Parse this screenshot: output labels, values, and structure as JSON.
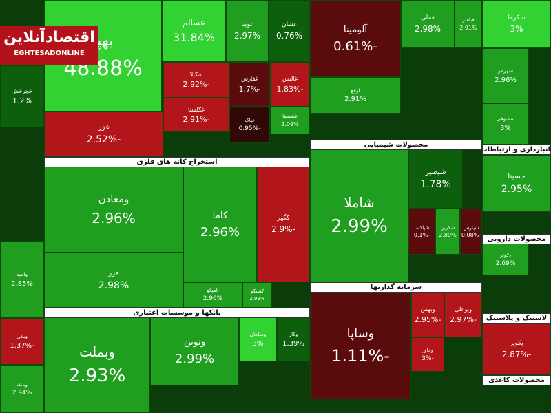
{
  "logo": {
    "title": "اقتصادآنلاین",
    "subtitle": "EGHTESADONLINE"
  },
  "tiles": [
    {
      "name": "بهپا",
      "change": "48.88%"
    },
    {
      "name": "عسالم",
      "change": "31.84%"
    },
    {
      "name": "غویتا",
      "change": "2.97%"
    },
    {
      "name": "غشان",
      "change": "0.76%"
    },
    {
      "name": "غزر",
      "change": "-2.52%"
    },
    {
      "name": "شگیلا",
      "change": "-2.92%"
    },
    {
      "name": "غگلستا",
      "change": "-2.91%"
    },
    {
      "name": "غفارس",
      "change": "-1.7%"
    },
    {
      "name": "غالبس",
      "change": "-1.83%"
    },
    {
      "name": "غپاک",
      "change": "-0.95%"
    },
    {
      "name": "غشصفا",
      "change": "2.09%"
    },
    {
      "name": "ومعادن",
      "change": "2.96%"
    },
    {
      "name": "فزر",
      "change": "2.98%"
    },
    {
      "name": "کاما",
      "change": "2.96%"
    },
    {
      "name": "کگهر",
      "change": "-2.9%"
    },
    {
      "name": "تامپکو",
      "change": "2.96%"
    },
    {
      "name": "کسنکو",
      "change": "2.99%"
    },
    {
      "name": "وبملت",
      "change": "2.93%"
    },
    {
      "name": "ونوین",
      "change": "2.99%"
    },
    {
      "name": "وسامان",
      "change": "3%"
    },
    {
      "name": "وکار",
      "change": "1.39%"
    },
    {
      "name": "آلومینا",
      "change": "-0.61%"
    },
    {
      "name": "فملی",
      "change": "2.98%"
    },
    {
      "name": "فباهنر",
      "change": "2.91%"
    },
    {
      "name": "سکرما",
      "change": "3%"
    },
    {
      "name": "ارفع",
      "change": "2.91%"
    },
    {
      "name": "شاملا",
      "change": "2.99%"
    },
    {
      "name": "شپصیر",
      "change": "1.78%"
    },
    {
      "name": "شپاکسا",
      "change": "-0.1%"
    },
    {
      "name": "شکربن",
      "change": "2.89%"
    },
    {
      "name": "شپترس",
      "change": "-0.08%"
    },
    {
      "name": "وساپا",
      "change": "-1.11%"
    },
    {
      "name": "وبهمن",
      "change": "-2.95%"
    },
    {
      "name": "وبوعلی",
      "change": "-2.97%"
    },
    {
      "name": "وخاور",
      "change": "-3%"
    },
    {
      "name": "سهرمز",
      "change": "2.96%"
    },
    {
      "name": "سصوفی",
      "change": "3%"
    },
    {
      "name": "حسینا",
      "change": "2.95%"
    },
    {
      "name": "دکوثر",
      "change": "2.69%"
    },
    {
      "name": "پکویر",
      "change": "-2.87%"
    },
    {
      "name": "وامید",
      "change": "2.85%"
    },
    {
      "name": "وبکی",
      "change": "-1.37%"
    },
    {
      "name": "وبانک",
      "change": "2.94%"
    },
    {
      "name": "خچرخش",
      "change": "1.2%"
    }
  ],
  "headers": [
    "استخراج کانه های فلزی",
    "بانکها و موسسات اعتباری",
    "محصولات شیمیایی",
    "سرمایه گذاریها",
    "انبارداری و ارتباطات",
    "محصولات دارویی",
    "لاستیک و پلاستیک",
    "محصولات کاغذی"
  ]
}
